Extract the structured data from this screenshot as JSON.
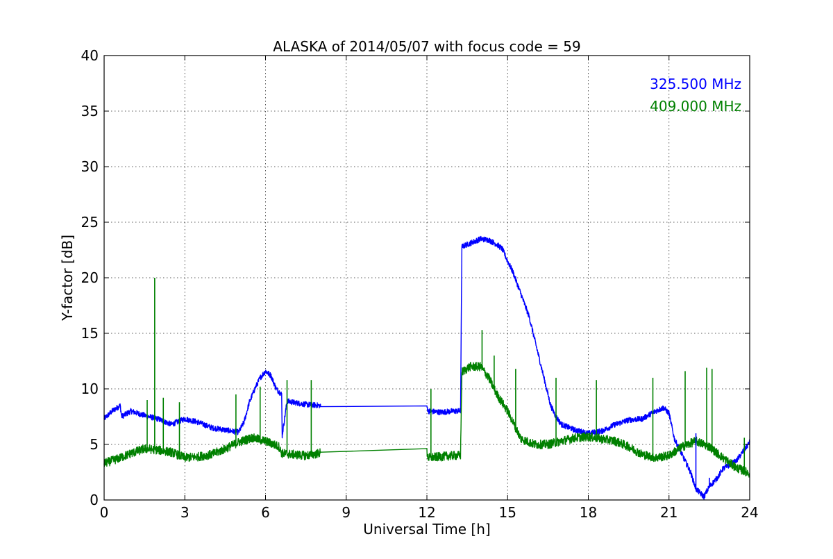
{
  "chart_data": {
    "type": "line",
    "title": "ALASKA of 2014/05/07 with focus code = 59",
    "xlabel": "Universal Time [h]",
    "ylabel": "Y-factor [dB]",
    "xlim": [
      0,
      24
    ],
    "ylim": [
      0,
      40
    ],
    "xticks": [
      "0",
      "3",
      "6",
      "9",
      "12",
      "15",
      "18",
      "21",
      "24"
    ],
    "yticks": [
      "0",
      "5",
      "10",
      "15",
      "20",
      "25",
      "30",
      "35",
      "40"
    ],
    "grid": true,
    "legend_position": "top-right",
    "series": [
      {
        "name": "325.500 MHz",
        "color": "#0000ff",
        "noise": 0.25,
        "x": [
          0,
          0.3,
          0.6,
          0.65,
          1.0,
          1.5,
          2.0,
          2.5,
          3.0,
          3.5,
          4.0,
          4.5,
          5.0,
          5.2,
          5.4,
          5.6,
          5.8,
          6.0,
          6.2,
          6.4,
          6.6,
          6.62,
          6.8,
          7.0,
          7.5,
          8.0,
          8.05,
          12.0,
          12.05,
          12.5,
          13.0,
          13.25,
          13.3,
          13.5,
          14.0,
          14.3,
          14.6,
          14.8,
          15.0,
          15.2,
          15.5,
          15.8,
          16.0,
          16.2,
          16.4,
          16.6,
          16.8,
          17.0,
          17.5,
          18.0,
          18.5,
          19.0,
          19.5,
          20.0,
          20.5,
          20.8,
          21.0,
          21.2,
          21.5,
          21.8,
          22.0,
          22.3,
          22.5,
          22.8,
          23.0,
          23.5,
          24.0
        ],
        "y": [
          7.3,
          8.0,
          8.5,
          7.5,
          8.0,
          7.6,
          7.3,
          6.8,
          7.3,
          7.0,
          6.5,
          6.3,
          6.1,
          7.0,
          8.8,
          10.0,
          11.0,
          11.6,
          11.2,
          10.0,
          9.5,
          5.8,
          8.9,
          8.8,
          8.6,
          8.5,
          8.4,
          8.4,
          8.0,
          7.9,
          8.0,
          8.0,
          22.8,
          23.0,
          23.5,
          23.4,
          23.0,
          22.6,
          21.5,
          20.5,
          18.5,
          16.5,
          14.5,
          12.5,
          10.5,
          8.5,
          7.5,
          6.8,
          6.3,
          6.0,
          6.2,
          6.8,
          7.2,
          7.3,
          8.0,
          8.3,
          7.8,
          5.5,
          4.0,
          2.5,
          1.0,
          0.3,
          1.2,
          2.0,
          2.8,
          3.5,
          5.2
        ]
      },
      {
        "name": "409.000 MHz",
        "color": "#008000",
        "noise": 0.4,
        "x": [
          0,
          0.5,
          1.0,
          1.5,
          2.0,
          2.5,
          3.0,
          3.5,
          4.0,
          4.5,
          5.0,
          5.5,
          6.0,
          6.5,
          6.6,
          7.0,
          7.5,
          8.0,
          8.05,
          12.0,
          12.05,
          12.5,
          13.0,
          13.25,
          13.3,
          13.6,
          14.0,
          14.3,
          14.6,
          15.0,
          15.3,
          15.5,
          16.0,
          16.5,
          17.0,
          17.5,
          18.0,
          18.5,
          19.0,
          19.5,
          20.0,
          20.5,
          21.0,
          21.5,
          22.0,
          22.5,
          23.0,
          23.5,
          24.0
        ],
        "y": [
          3.3,
          3.7,
          4.2,
          4.6,
          4.5,
          4.3,
          3.8,
          3.9,
          4.1,
          4.6,
          5.2,
          5.6,
          5.3,
          4.8,
          4.2,
          4.1,
          4.0,
          4.2,
          4.3,
          4.3,
          3.8,
          3.9,
          4.0,
          4.0,
          11.5,
          12.0,
          12.0,
          11.0,
          9.5,
          8.0,
          6.5,
          5.5,
          5.0,
          5.0,
          5.3,
          5.6,
          5.7,
          5.5,
          5.3,
          4.8,
          4.1,
          3.8,
          4.0,
          4.8,
          5.3,
          4.8,
          3.8,
          2.9,
          2.4
        ]
      }
    ],
    "spikes": [
      {
        "series": 1,
        "x": 1.88,
        "y": 20.0
      },
      {
        "series": 1,
        "x": 1.6,
        "y": 9.0
      },
      {
        "series": 1,
        "x": 2.2,
        "y": 9.2
      },
      {
        "series": 1,
        "x": 2.8,
        "y": 8.8
      },
      {
        "series": 1,
        "x": 4.9,
        "y": 9.5
      },
      {
        "series": 1,
        "x": 5.8,
        "y": 10.2
      },
      {
        "series": 1,
        "x": 6.8,
        "y": 10.8
      },
      {
        "series": 1,
        "x": 7.7,
        "y": 10.8
      },
      {
        "series": 1,
        "x": 12.15,
        "y": 10.0
      },
      {
        "series": 1,
        "x": 14.05,
        "y": 15.3
      },
      {
        "series": 1,
        "x": 14.5,
        "y": 13.0
      },
      {
        "series": 1,
        "x": 15.3,
        "y": 11.8
      },
      {
        "series": 1,
        "x": 16.8,
        "y": 11.0
      },
      {
        "series": 1,
        "x": 18.3,
        "y": 10.8
      },
      {
        "series": 1,
        "x": 20.4,
        "y": 11.0
      },
      {
        "series": 1,
        "x": 21.6,
        "y": 11.6
      },
      {
        "series": 1,
        "x": 22.4,
        "y": 11.9
      },
      {
        "series": 1,
        "x": 22.6,
        "y": 11.8
      },
      {
        "series": 1,
        "x": 23.8,
        "y": 5.6
      },
      {
        "series": 0,
        "x": 22.0,
        "y": 6.0
      },
      {
        "series": 0,
        "x": 22.5,
        "y": 2.0
      }
    ]
  }
}
